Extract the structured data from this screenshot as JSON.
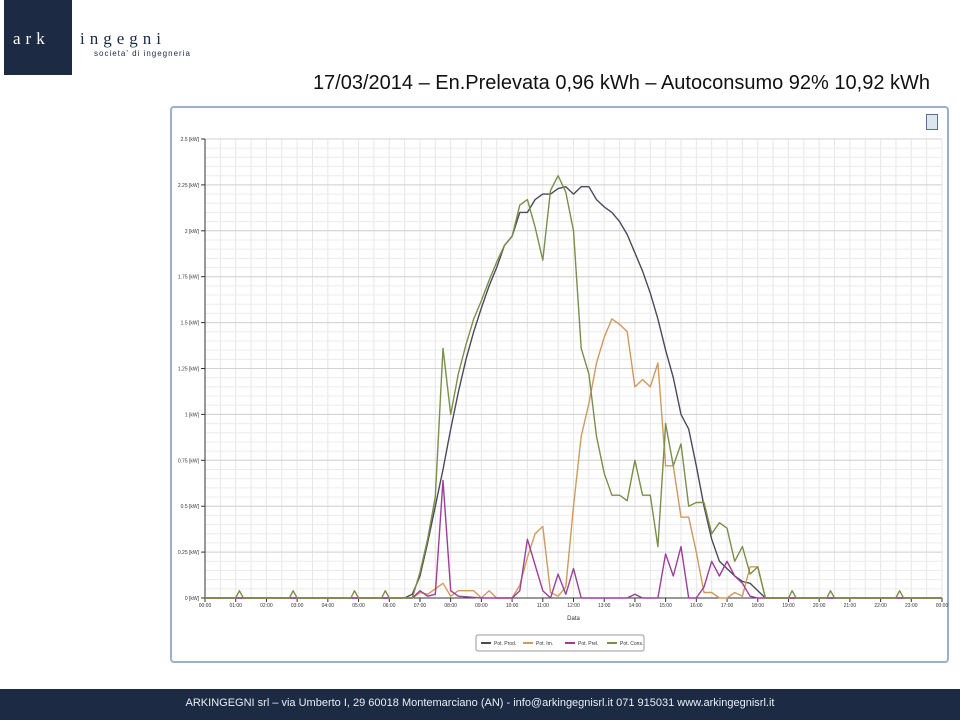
{
  "logo": {
    "ark": "ark",
    "ingegni": "ingegni",
    "subtitle": "societa' di ingegneria",
    "bg_color": "#1c2a44"
  },
  "header": {
    "title": "17/03/2014 – En.Prelevata 0,96 kWh – Autoconsumo 92% 10,92 kWh"
  },
  "footer": {
    "text": "ARKINGEGNI srl – via Umberto I, 29 60018 Montemarciano (AN) - info@arkingegnisrl.it 071 915031 www.arkingegnisrl.it"
  },
  "chart_data": {
    "type": "line",
    "title": "",
    "xlabel": "Data",
    "ylabel": "",
    "xlim": [
      0,
      24
    ],
    "ylim": [
      0,
      2.5
    ],
    "grid": true,
    "legend_position": "bottom-center",
    "x_ticks": [
      "00:00",
      "01:00",
      "02:00",
      "03:00",
      "04:00",
      "05:00",
      "06:00",
      "07:00",
      "08:00",
      "09:00",
      "10:00",
      "11:00",
      "12:00",
      "13:00",
      "14:00",
      "15:00",
      "16:00",
      "17:00",
      "18:00",
      "19:00",
      "20:00",
      "21:00",
      "22:00",
      "23:00",
      "00:00"
    ],
    "y_ticks": [
      "0 [kW]",
      "0.25 [kW]",
      "0.5 [kW]",
      "0.75 [kW]",
      "1 [kW]",
      "1.25 [kW]",
      "1.5 [kW]",
      "1.75 [kW]",
      "2 [kW]",
      "2.25 [kW]",
      "2.5 [kW]"
    ],
    "series": [
      {
        "name": "Pot. Prod.",
        "color": "#4a4a5a",
        "points": [
          [
            0,
            0
          ],
          [
            6.5,
            0
          ],
          [
            6.75,
            0.02
          ],
          [
            7,
            0.12
          ],
          [
            7.25,
            0.3
          ],
          [
            7.5,
            0.5
          ],
          [
            7.75,
            0.7
          ],
          [
            8,
            0.92
          ],
          [
            8.25,
            1.12
          ],
          [
            8.5,
            1.3
          ],
          [
            8.75,
            1.45
          ],
          [
            9,
            1.58
          ],
          [
            9.25,
            1.7
          ],
          [
            9.5,
            1.8
          ],
          [
            9.75,
            1.92
          ],
          [
            10,
            1.97
          ],
          [
            10.25,
            2.1
          ],
          [
            10.5,
            2.1
          ],
          [
            10.75,
            2.17
          ],
          [
            11,
            2.2
          ],
          [
            11.25,
            2.2
          ],
          [
            11.5,
            2.23
          ],
          [
            11.75,
            2.24
          ],
          [
            12,
            2.2
          ],
          [
            12.25,
            2.24
          ],
          [
            12.5,
            2.24
          ],
          [
            12.75,
            2.17
          ],
          [
            13,
            2.13
          ],
          [
            13.25,
            2.1
          ],
          [
            13.5,
            2.05
          ],
          [
            13.75,
            1.98
          ],
          [
            14,
            1.88
          ],
          [
            14.25,
            1.78
          ],
          [
            14.5,
            1.66
          ],
          [
            14.75,
            1.52
          ],
          [
            15,
            1.35
          ],
          [
            15.25,
            1.2
          ],
          [
            15.5,
            1.0
          ],
          [
            15.75,
            0.92
          ],
          [
            16,
            0.72
          ],
          [
            16.25,
            0.5
          ],
          [
            16.5,
            0.32
          ],
          [
            16.75,
            0.2
          ],
          [
            17,
            0.16
          ],
          [
            17.25,
            0.12
          ],
          [
            17.5,
            0.09
          ],
          [
            17.75,
            0.08
          ],
          [
            18,
            0.04
          ],
          [
            18.25,
            0
          ],
          [
            24,
            0
          ]
        ]
      },
      {
        "name": "Pot. Im.",
        "color": "#d09a5e",
        "points": [
          [
            0,
            0
          ],
          [
            6.75,
            0
          ],
          [
            7,
            0.03
          ],
          [
            7.25,
            0.02
          ],
          [
            7.5,
            0.05
          ],
          [
            7.75,
            0.08
          ],
          [
            8,
            0.01
          ],
          [
            8.25,
            0.04
          ],
          [
            8.5,
            0.04
          ],
          [
            8.75,
            0.04
          ],
          [
            9,
            0
          ],
          [
            9.25,
            0.04
          ],
          [
            9.5,
            0
          ],
          [
            10,
            0
          ],
          [
            10.25,
            0.07
          ],
          [
            10.5,
            0.22
          ],
          [
            10.75,
            0.35
          ],
          [
            11,
            0.39
          ],
          [
            11.25,
            0.03
          ],
          [
            11.5,
            0.01
          ],
          [
            11.75,
            0.06
          ],
          [
            12,
            0.5
          ],
          [
            12.25,
            0.88
          ],
          [
            12.5,
            1.06
          ],
          [
            12.75,
            1.28
          ],
          [
            13,
            1.42
          ],
          [
            13.25,
            1.52
          ],
          [
            13.5,
            1.49
          ],
          [
            13.75,
            1.45
          ],
          [
            14,
            1.15
          ],
          [
            14.25,
            1.19
          ],
          [
            14.5,
            1.15
          ],
          [
            14.75,
            1.28
          ],
          [
            15,
            0.72
          ],
          [
            15.25,
            0.72
          ],
          [
            15.5,
            0.44
          ],
          [
            15.75,
            0.44
          ],
          [
            16,
            0.25
          ],
          [
            16.25,
            0.03
          ],
          [
            16.5,
            0.03
          ],
          [
            16.75,
            0
          ],
          [
            17,
            0
          ],
          [
            17.25,
            0.03
          ],
          [
            17.5,
            0.01
          ],
          [
            17.75,
            0.17
          ],
          [
            18,
            0.17
          ],
          [
            18.25,
            0
          ],
          [
            24,
            0
          ]
        ]
      },
      {
        "name": "Pot. Prel.",
        "color": "#9b3f9a",
        "points": [
          [
            0,
            0
          ],
          [
            6.75,
            0
          ],
          [
            7,
            0.04
          ],
          [
            7.25,
            0.01
          ],
          [
            7.5,
            0.02
          ],
          [
            7.75,
            0.64
          ],
          [
            8,
            0.04
          ],
          [
            8.25,
            0.01
          ],
          [
            9,
            0
          ],
          [
            10,
            0
          ],
          [
            10.25,
            0.04
          ],
          [
            10.5,
            0.32
          ],
          [
            10.75,
            0.18
          ],
          [
            11,
            0.04
          ],
          [
            11.25,
            0
          ],
          [
            11.5,
            0.13
          ],
          [
            11.75,
            0.02
          ],
          [
            12,
            0.16
          ],
          [
            12.25,
            0
          ],
          [
            13.75,
            0
          ],
          [
            14,
            0.02
          ],
          [
            14.25,
            0
          ],
          [
            14.75,
            0
          ],
          [
            15,
            0.24
          ],
          [
            15.25,
            0.12
          ],
          [
            15.5,
            0.28
          ],
          [
            15.75,
            0
          ],
          [
            16,
            0
          ],
          [
            16.25,
            0.06
          ],
          [
            16.5,
            0.2
          ],
          [
            16.75,
            0.12
          ],
          [
            17,
            0.2
          ],
          [
            17.25,
            0.12
          ],
          [
            17.5,
            0.08
          ],
          [
            17.75,
            0.01
          ],
          [
            18,
            0
          ],
          [
            24,
            0
          ]
        ]
      },
      {
        "name": "Pot. Cons.",
        "color": "#7a8f4a",
        "points": [
          [
            0,
            0
          ],
          [
            1,
            0
          ],
          [
            1.12,
            0.04
          ],
          [
            1.25,
            0
          ],
          [
            2.75,
            0
          ],
          [
            2.87,
            0.04
          ],
          [
            3,
            0
          ],
          [
            4.75,
            0
          ],
          [
            4.87,
            0.04
          ],
          [
            5,
            0
          ],
          [
            5.75,
            0
          ],
          [
            5.87,
            0.04
          ],
          [
            6,
            0
          ],
          [
            6.75,
            0
          ],
          [
            7,
            0.14
          ],
          [
            7.25,
            0.32
          ],
          [
            7.5,
            0.55
          ],
          [
            7.75,
            1.36
          ],
          [
            8,
            1.0
          ],
          [
            8.25,
            1.22
          ],
          [
            8.5,
            1.38
          ],
          [
            8.75,
            1.52
          ],
          [
            9,
            1.62
          ],
          [
            9.25,
            1.73
          ],
          [
            9.5,
            1.83
          ],
          [
            9.75,
            1.92
          ],
          [
            10,
            1.97
          ],
          [
            10.25,
            2.14
          ],
          [
            10.5,
            2.17
          ],
          [
            10.75,
            2.02
          ],
          [
            11,
            1.84
          ],
          [
            11.25,
            2.22
          ],
          [
            11.5,
            2.3
          ],
          [
            11.75,
            2.21
          ],
          [
            12,
            2.0
          ],
          [
            12.25,
            1.36
          ],
          [
            12.5,
            1.22
          ],
          [
            12.75,
            0.88
          ],
          [
            13,
            0.68
          ],
          [
            13.25,
            0.56
          ],
          [
            13.5,
            0.56
          ],
          [
            13.75,
            0.53
          ],
          [
            14,
            0.75
          ],
          [
            14.25,
            0.56
          ],
          [
            14.5,
            0.56
          ],
          [
            14.75,
            0.28
          ],
          [
            15,
            0.95
          ],
          [
            15.25,
            0.72
          ],
          [
            15.5,
            0.84
          ],
          [
            15.75,
            0.5
          ],
          [
            16,
            0.52
          ],
          [
            16.25,
            0.52
          ],
          [
            16.5,
            0.35
          ],
          [
            16.75,
            0.41
          ],
          [
            17,
            0.38
          ],
          [
            17.25,
            0.2
          ],
          [
            17.5,
            0.28
          ],
          [
            17.75,
            0.13
          ],
          [
            18,
            0.17
          ],
          [
            18.25,
            0
          ],
          [
            19,
            0
          ],
          [
            19.12,
            0.04
          ],
          [
            19.25,
            0
          ],
          [
            20.25,
            0
          ],
          [
            20.37,
            0.04
          ],
          [
            20.5,
            0
          ],
          [
            22.5,
            0
          ],
          [
            22.62,
            0.04
          ],
          [
            22.75,
            0
          ],
          [
            24,
            0
          ]
        ]
      }
    ]
  }
}
